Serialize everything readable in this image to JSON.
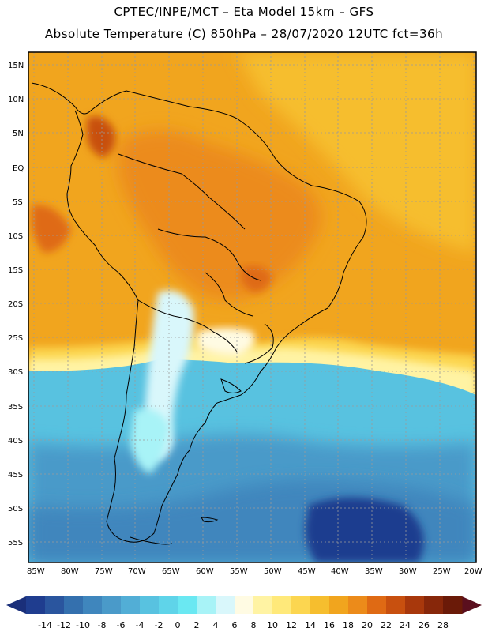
{
  "header": {
    "line1": "CPTEC/INPE/MCT –  Eta Model 15km – GFS",
    "line2": "Absolute Temperature (C) 850hPa – 28/07/2020 12UTC fct=36h"
  },
  "axes": {
    "lat_labels": [
      "15N",
      "10N",
      "5N",
      "EQ",
      "5S",
      "10S",
      "15S",
      "20S",
      "25S",
      "30S",
      "35S",
      "40S",
      "45S",
      "50S",
      "55S"
    ],
    "lon_labels": [
      "85W",
      "80W",
      "75W",
      "70W",
      "65W",
      "60W",
      "55W",
      "50W",
      "45W",
      "40W",
      "35W",
      "30W",
      "25W",
      "20W"
    ]
  },
  "colorbar": {
    "labels": [
      "-14",
      "-12",
      "-10",
      "-8",
      "-6",
      "-4",
      "-2",
      "0",
      "2",
      "4",
      "6",
      "8",
      "10",
      "12",
      "14",
      "16",
      "18",
      "20",
      "22",
      "24",
      "26",
      "28"
    ],
    "colors": [
      "#1f3d8f",
      "#2a559e",
      "#3470ae",
      "#3f86bd",
      "#4a9ac9",
      "#52aed6",
      "#58c2e0",
      "#5fd4e9",
      "#6ae8f2",
      "#a8f3f7",
      "#d9f7fb",
      "#fffbe3",
      "#fff3a3",
      "#ffe97a",
      "#fcd650",
      "#f6be2e",
      "#f1a51e",
      "#ec8b1a",
      "#df6a14",
      "#c8500f",
      "#a8380c",
      "#87270a",
      "#6a1a08"
    ],
    "left_arrow_color": "#1a2f7a",
    "right_arrow_color": "#5a0f1e"
  }
}
